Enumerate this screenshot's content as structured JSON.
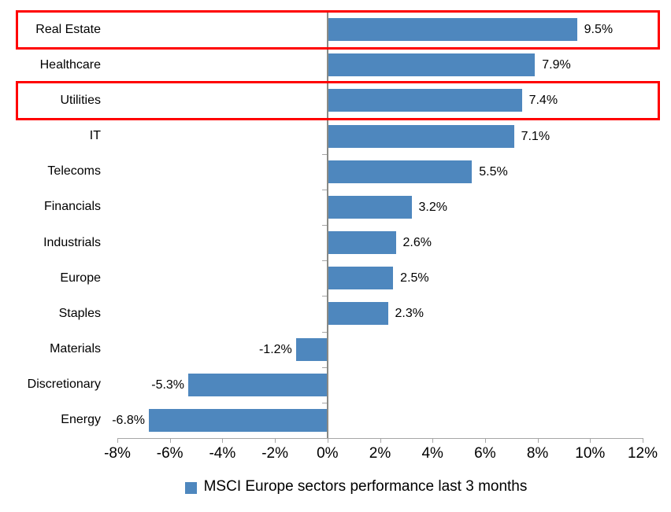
{
  "chart_data": {
    "type": "bar",
    "orientation": "horizontal",
    "title": "",
    "categories": [
      "Real Estate",
      "Healthcare",
      "Utilities",
      "IT",
      "Telecoms",
      "Financials",
      "Industrials",
      "Europe",
      "Staples",
      "Materials",
      "Discretionary",
      "Energy"
    ],
    "values": [
      9.5,
      7.9,
      7.4,
      7.1,
      5.5,
      3.2,
      2.6,
      2.5,
      2.3,
      -1.2,
      -5.3,
      -6.8
    ],
    "value_labels": [
      "9.5%",
      "7.9%",
      "7.4%",
      "7.1%",
      "5.5%",
      "3.2%",
      "2.6%",
      "2.5%",
      "2.3%",
      "-1.2%",
      "-5.3%",
      "-6.8%"
    ],
    "x_ticks": [
      "-8%",
      "-6%",
      "-4%",
      "-2%",
      "0%",
      "2%",
      "4%",
      "6%",
      "8%",
      "10%",
      "12%"
    ],
    "xlim": [
      -8,
      12
    ],
    "xlabel": "",
    "ylabel": "",
    "grid": false,
    "legend": [
      "MSCI Europe sectors performance last 3 months"
    ],
    "legend_position": "bottom",
    "bar_color": "#4e87be",
    "axis_line_color": "#8a8a85",
    "tick_color": "#a6a6a6",
    "highlight_box_color": "#ff0000",
    "annotations": [
      {
        "type": "red-box",
        "target": "Real Estate"
      },
      {
        "type": "red-box",
        "target": "Utilities"
      }
    ]
  }
}
